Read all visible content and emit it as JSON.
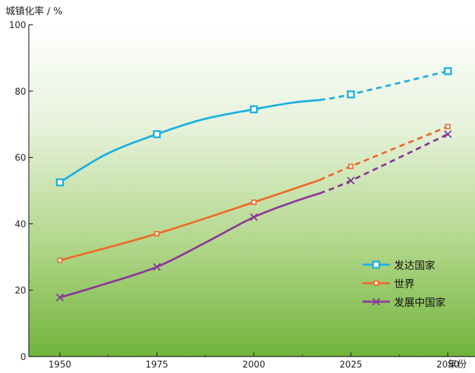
{
  "chart_data": {
    "type": "line",
    "ylabel": "城镇化率 / %",
    "xlabel": "年份",
    "ylim": [
      0,
      100
    ],
    "y_ticks": [
      0,
      20,
      40,
      60,
      80,
      100
    ],
    "x_ticks": [
      1950,
      1975,
      2000,
      2025,
      2050
    ],
    "x_range": [
      1942,
      2057
    ],
    "grid": false,
    "background": "vertical gradient from white (top) to green (bottom)",
    "legend_position": "bottom-right",
    "note": "",
    "series": [
      {
        "name": "发达国家",
        "color": "#1ab0e3",
        "marker": "square-hollow",
        "solid": [
          [
            1950,
            52.5
          ],
          [
            1962,
            61
          ],
          [
            1975,
            67
          ],
          [
            1987,
            71.5
          ],
          [
            2000,
            74.5
          ],
          [
            2010,
            76.5
          ],
          [
            2017,
            77.3
          ]
        ],
        "dashed": [
          [
            2017,
            77.3
          ],
          [
            2025,
            79
          ],
          [
            2050,
            86
          ]
        ],
        "markers": [
          [
            1950,
            52.5
          ],
          [
            1975,
            67
          ],
          [
            2000,
            74.5
          ],
          [
            2025,
            79
          ],
          [
            2050,
            86
          ]
        ]
      },
      {
        "name": "世界",
        "color": "#ee6a2a",
        "marker": "square-small",
        "solid": [
          [
            1950,
            29
          ],
          [
            1975,
            37
          ],
          [
            2000,
            46.5
          ],
          [
            2017,
            53.2
          ]
        ],
        "dashed": [
          [
            2017,
            53.2
          ],
          [
            2025,
            57.3
          ],
          [
            2050,
            69.3
          ]
        ],
        "markers": [
          [
            1950,
            29
          ],
          [
            1975,
            37
          ],
          [
            2000,
            46.5
          ],
          [
            2025,
            57.3
          ],
          [
            2050,
            69.3
          ]
        ]
      },
      {
        "name": "发展中国家",
        "color": "#8a3a96",
        "marker": "x",
        "solid": [
          [
            1950,
            17.8
          ],
          [
            1962,
            22
          ],
          [
            1975,
            27
          ],
          [
            1987,
            34
          ],
          [
            2000,
            42
          ],
          [
            2010,
            46.5
          ],
          [
            2017,
            49.2
          ]
        ],
        "dashed": [
          [
            2017,
            49.2
          ],
          [
            2025,
            53
          ],
          [
            2050,
            67
          ]
        ],
        "markers": [
          [
            1950,
            17.8
          ],
          [
            1975,
            27
          ],
          [
            2000,
            42
          ],
          [
            2025,
            53
          ],
          [
            2050,
            67
          ]
        ]
      }
    ]
  }
}
